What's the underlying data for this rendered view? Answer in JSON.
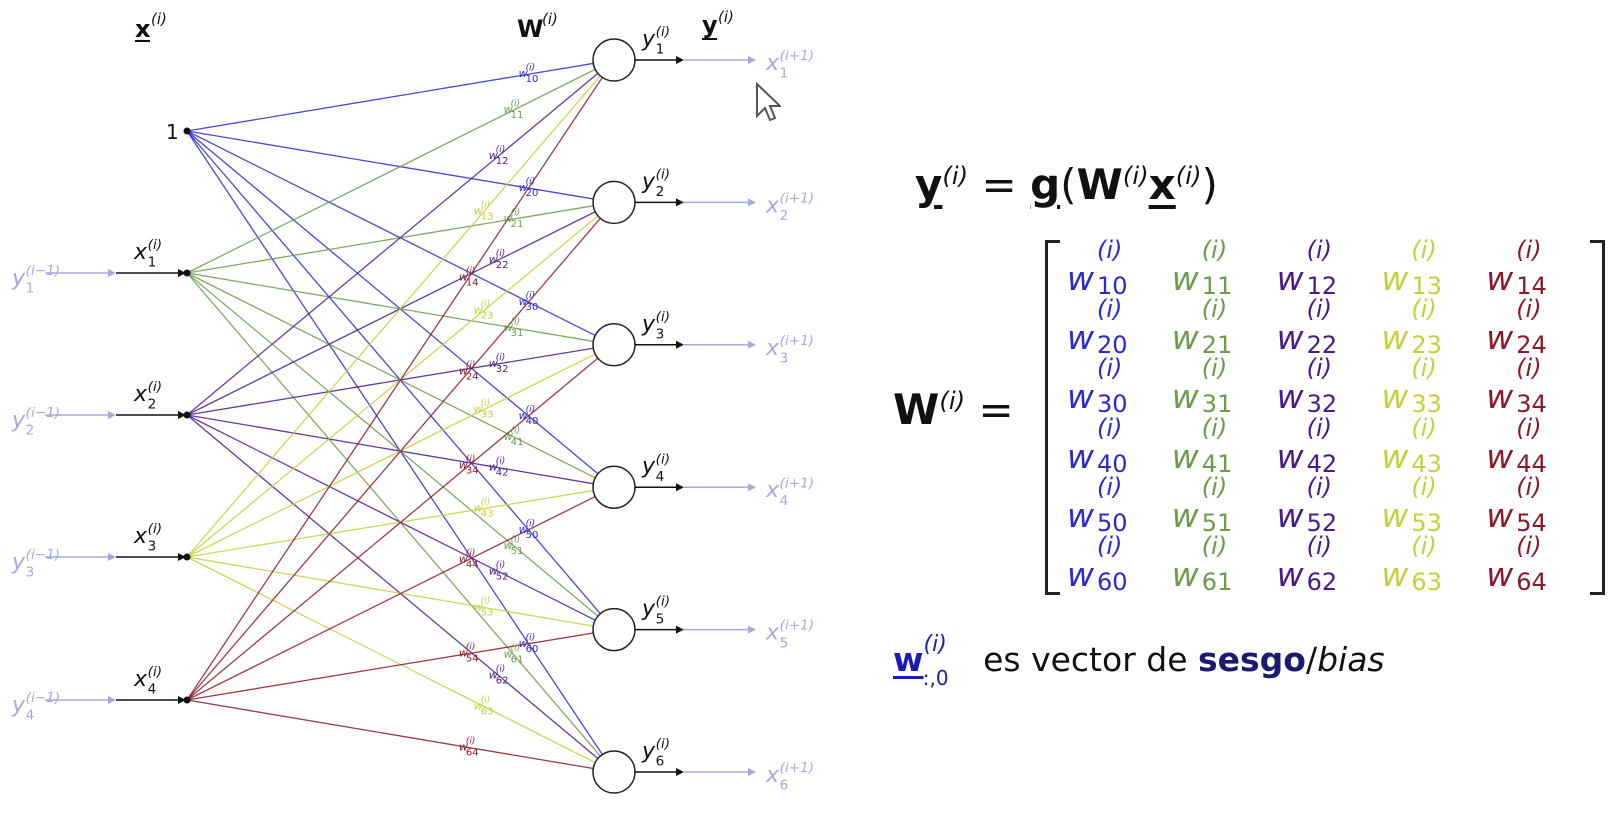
{
  "colors": {
    "blue": "#2a2ad0",
    "green": "#6e9a4c",
    "purple": "#4a1a8c",
    "yellow": "#c3d23a",
    "red": "#8c1a2a",
    "faded": "#a8a8e0",
    "dark": "#111111"
  },
  "header": {
    "x_label": "x",
    "x_sup": "(i)",
    "W_label": "W",
    "W_sup": "(i)",
    "y_label": "y",
    "y_sup": "(i)"
  },
  "bias_node_label": "1",
  "inputs": [
    {
      "y_prev": "y",
      "y_prev_sub": "1",
      "y_prev_sup": "(i−1)",
      "x": "x",
      "x_sub": "1",
      "x_sup": "(i)"
    },
    {
      "y_prev": "y",
      "y_prev_sub": "2",
      "y_prev_sup": "(i−1)",
      "x": "x",
      "x_sub": "2",
      "x_sup": "(i)"
    },
    {
      "y_prev": "y",
      "y_prev_sub": "3",
      "y_prev_sup": "(i−1)",
      "x": "x",
      "x_sub": "3",
      "x_sup": "(i)"
    },
    {
      "y_prev": "y",
      "y_prev_sub": "4",
      "y_prev_sup": "(i−1)",
      "x": "x",
      "x_sub": "4",
      "x_sup": "(i)"
    }
  ],
  "outputs": [
    {
      "y": "y",
      "y_sub": "1",
      "y_sup": "(i)",
      "x_next": "x",
      "x_next_sub": "1",
      "x_next_sup": "(i+1)"
    },
    {
      "y": "y",
      "y_sub": "2",
      "y_sup": "(i)",
      "x_next": "x",
      "x_next_sub": "2",
      "x_next_sup": "(i+1)"
    },
    {
      "y": "y",
      "y_sub": "3",
      "y_sup": "(i)",
      "x_next": "x",
      "x_next_sub": "3",
      "x_next_sup": "(i+1)"
    },
    {
      "y": "y",
      "y_sub": "4",
      "y_sup": "(i)",
      "x_next": "x",
      "x_next_sub": "4",
      "x_next_sup": "(i+1)"
    },
    {
      "y": "y",
      "y_sub": "5",
      "y_sup": "(i)",
      "x_next": "x",
      "x_next_sub": "5",
      "x_next_sup": "(i+1)"
    },
    {
      "y": "y",
      "y_sub": "6",
      "y_sup": "(i)",
      "x_next": "x",
      "x_next_sub": "6",
      "x_next_sup": "(i+1)"
    }
  ],
  "weight_label_prefix": "w",
  "weight_label_sup": "(i)",
  "equation": {
    "lhs": "y",
    "lhs_sup": "(i)",
    "equals": " = ",
    "g": "g",
    "open": "(",
    "W": "W",
    "W_sup": "(i)",
    "x": "x",
    "x_sup": "(i)",
    "close": ")"
  },
  "matrix_eq": {
    "lhs": "W",
    "lhs_sup": "(i)",
    "equals": " ="
  },
  "matrix": {
    "symbol": "w",
    "sup": "(i)",
    "rows": [
      [
        "10",
        "11",
        "12",
        "13",
        "14"
      ],
      [
        "20",
        "21",
        "22",
        "23",
        "24"
      ],
      [
        "30",
        "31",
        "32",
        "33",
        "34"
      ],
      [
        "40",
        "41",
        "42",
        "43",
        "44"
      ],
      [
        "50",
        "51",
        "52",
        "53",
        "54"
      ],
      [
        "60",
        "61",
        "62",
        "63",
        "64"
      ]
    ]
  },
  "bias_note": {
    "w": "w",
    "w_sup": "(i)",
    "w_sub": ":,0",
    "text1": " es vector de ",
    "sesgo": "sesgo",
    "slash": "/",
    "bias": "bias"
  }
}
